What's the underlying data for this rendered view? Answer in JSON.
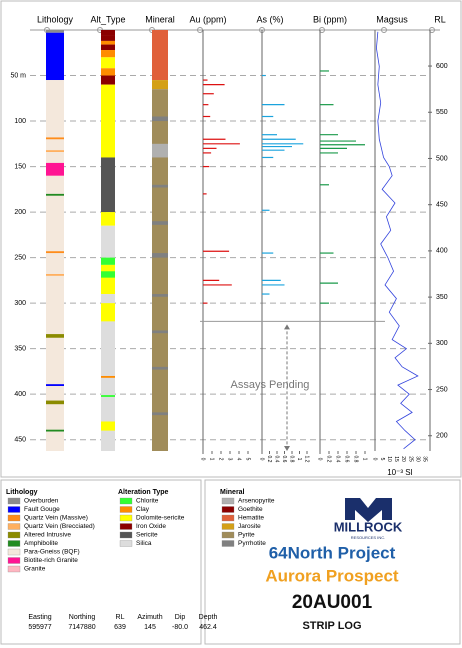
{
  "log": {
    "headers": {
      "lithology": "Lithology",
      "alteration": "Alt_Type",
      "mineral": "Mineral",
      "au": "Au (ppm)",
      "as": "As (%)",
      "bi": "Bi (ppm)",
      "magsus": "Magsus",
      "rl": "RL"
    },
    "depth_lim": [
      0,
      462.4
    ],
    "depth_ticks": [
      {
        "value": 50,
        "label": "50 m"
      },
      100,
      150,
      200,
      250,
      300,
      350,
      400,
      450
    ],
    "rl_lim": [
      639,
      183.5
    ],
    "rl_ticks": [
      600,
      550,
      500,
      450,
      400,
      350,
      300,
      250,
      200
    ],
    "lithology": [
      {
        "from": 0,
        "to": 3,
        "code": 0
      },
      {
        "from": 3,
        "to": 55,
        "code": 1
      },
      {
        "from": 55,
        "to": 462.4,
        "code": 6
      },
      {
        "from": 118,
        "to": 120,
        "code": 2
      },
      {
        "from": 132,
        "to": 134,
        "code": 3
      },
      {
        "from": 146,
        "to": 160,
        "code": 7
      },
      {
        "from": 180,
        "to": 182,
        "code": 5
      },
      {
        "from": 243,
        "to": 245,
        "code": 2
      },
      {
        "from": 268,
        "to": 270,
        "code": 3
      },
      {
        "from": 334,
        "to": 338,
        "code": 4
      },
      {
        "from": 389,
        "to": 391,
        "code": 1
      },
      {
        "from": 407,
        "to": 411,
        "code": 4
      },
      {
        "from": 439,
        "to": 441,
        "code": 5
      }
    ],
    "alteration": [
      {
        "from": 0,
        "to": 6,
        "code": 3
      },
      {
        "from": 6,
        "to": 12,
        "code": 3
      },
      {
        "from": 12,
        "to": 16,
        "code": 1
      },
      {
        "from": 16,
        "to": 22,
        "code": 3
      },
      {
        "from": 22,
        "to": 30,
        "code": 1
      },
      {
        "from": 30,
        "to": 42,
        "code": 2
      },
      {
        "from": 42,
        "to": 50,
        "code": 1
      },
      {
        "from": 50,
        "to": 60,
        "code": 3
      },
      {
        "from": 60,
        "to": 140,
        "code": 2
      },
      {
        "from": 140,
        "to": 200,
        "code": 4
      },
      {
        "from": 200,
        "to": 215,
        "code": 2
      },
      {
        "from": 215,
        "to": 250,
        "code": 5
      },
      {
        "from": 250,
        "to": 258,
        "code": 0
      },
      {
        "from": 258,
        "to": 290,
        "code": 2
      },
      {
        "from": 265,
        "to": 272,
        "code": 0
      },
      {
        "from": 290,
        "to": 462.4,
        "code": 5
      },
      {
        "from": 300,
        "to": 320,
        "code": 2
      },
      {
        "from": 380,
        "to": 382,
        "code": 1
      },
      {
        "from": 401,
        "to": 403,
        "code": 0
      },
      {
        "from": 430,
        "to": 440,
        "code": 2
      }
    ],
    "mineral": [
      {
        "from": 0,
        "to": 55,
        "code": 2
      },
      {
        "from": 55,
        "to": 65,
        "code": 3
      },
      {
        "from": 65,
        "to": 462.4,
        "code": 4
      },
      {
        "from": 95,
        "to": 100,
        "code": 5
      },
      {
        "from": 125,
        "to": 140,
        "code": 0
      },
      {
        "from": 170,
        "to": 173,
        "code": 5
      },
      {
        "from": 210,
        "to": 214,
        "code": 5
      },
      {
        "from": 245,
        "to": 250,
        "code": 5
      },
      {
        "from": 290,
        "to": 293,
        "code": 5
      },
      {
        "from": 330,
        "to": 333,
        "code": 5
      },
      {
        "from": 370,
        "to": 373,
        "code": 5
      },
      {
        "from": 420,
        "to": 423,
        "code": 5
      }
    ],
    "au": {
      "xlim": [
        0,
        5
      ],
      "xticks": [
        0,
        1,
        2,
        3,
        4,
        5
      ],
      "depths": [
        55,
        60,
        70,
        82,
        95,
        120,
        125,
        130,
        135,
        150,
        180,
        243,
        275,
        280,
        300
      ],
      "values": [
        0.5,
        2.4,
        1.2,
        0.6,
        0.8,
        2.5,
        4.1,
        1.5,
        0.9,
        0.7,
        0.4,
        2.9,
        1.8,
        3.2,
        0.5
      ]
    },
    "as": {
      "xlim": [
        0,
        1.2
      ],
      "xticks": [
        0,
        0.2,
        0.4,
        0.6,
        0.8,
        1,
        1.2
      ],
      "depths": [
        50,
        82,
        95,
        115,
        120,
        125,
        128,
        132,
        140,
        198,
        245,
        275,
        280,
        290
      ],
      "values": [
        0.1,
        0.6,
        0.3,
        0.4,
        0.9,
        1.1,
        0.8,
        0.6,
        0.3,
        0.2,
        0.3,
        0.5,
        0.6,
        0.2
      ]
    },
    "bi": {
      "xlim": [
        0,
        1
      ],
      "xticks": [
        0,
        0.2,
        0.4,
        0.6,
        0.8,
        1
      ],
      "depths": [
        45,
        82,
        115,
        122,
        126,
        130,
        135,
        170,
        245,
        278,
        300
      ],
      "values": [
        0.2,
        0.3,
        0.4,
        0.8,
        1,
        0.6,
        0.4,
        0.2,
        0.3,
        0.4,
        0.2
      ]
    },
    "magsus": {
      "xlim": [
        0,
        35
      ],
      "xticks": [
        0,
        5,
        10,
        15,
        20,
        25,
        30,
        35
      ],
      "unit": "10⁻³ SI",
      "depths": [
        2,
        20,
        40,
        60,
        80,
        100,
        120,
        140,
        150,
        160,
        175,
        190,
        205,
        220,
        235,
        250,
        265,
        280,
        295,
        310,
        325,
        340,
        350,
        360,
        370,
        380,
        390,
        400,
        410,
        420,
        430,
        440,
        450,
        460
      ],
      "values": [
        2,
        1,
        3,
        2,
        4,
        2,
        3,
        6,
        10,
        12,
        5,
        14,
        8,
        11,
        4,
        9,
        13,
        7,
        15,
        10,
        17,
        12,
        22,
        14,
        19,
        30,
        16,
        24,
        18,
        26,
        15,
        21,
        28,
        20
      ]
    },
    "pending": "Assays Pending",
    "pending_depth": 320
  },
  "legend": {
    "lithology": {
      "title": "Lithology",
      "items": [
        {
          "name": "Overburden",
          "color": "#8c8c8c"
        },
        {
          "name": "Fault Gouge",
          "color": "#0000ff"
        },
        {
          "name": "Quartz Vein (Massive)",
          "color": "#ff8c1a"
        },
        {
          "name": "Quartz Vein (Brecciated)",
          "color": "#ffb060"
        },
        {
          "name": "Altered Intrusive",
          "color": "#8b8b00"
        },
        {
          "name": "Amphibolite",
          "color": "#228b22"
        },
        {
          "name": "Para-Gneiss (BQF)",
          "color": "#f4e8dc"
        },
        {
          "name": "Biotite-rich Granite",
          "color": "#ff1493"
        },
        {
          "name": "Granite",
          "color": "#ffb6c1"
        }
      ]
    },
    "alteration": {
      "title": "Alteration Type",
      "items": [
        {
          "name": "Chlorite",
          "color": "#33ff33"
        },
        {
          "name": "Clay",
          "color": "#ff8c00"
        },
        {
          "name": "Dolomite-sericite",
          "color": "#ffff00"
        },
        {
          "name": "Iron Oxide",
          "color": "#8b0000"
        },
        {
          "name": "Sericite",
          "color": "#555555"
        },
        {
          "name": "Silica",
          "color": "#dddddd"
        }
      ]
    },
    "mineral": {
      "title": "Mineral",
      "items": [
        {
          "name": "Arsenopyrite",
          "color": "#b0b0b0"
        },
        {
          "name": "Goethite",
          "color": "#8b0000"
        },
        {
          "name": "Hematite",
          "color": "#e0603a"
        },
        {
          "name": "Jarosite",
          "color": "#d4a017"
        },
        {
          "name": "Pyrite",
          "color": "#a08c5a"
        },
        {
          "name": "Pyrrhotite",
          "color": "#808080"
        }
      ]
    }
  },
  "collar": [
    {
      "label": "Easting",
      "value": "595977"
    },
    {
      "label": "Northing",
      "value": "7147880"
    },
    {
      "label": "RL",
      "value": "639"
    },
    {
      "label": "Azimuth",
      "value": "145"
    },
    {
      "label": "Dip",
      "value": "-80.0"
    },
    {
      "label": "Depth",
      "value": "462.4"
    }
  ],
  "title_block": {
    "logo": "MILLROCK",
    "logo_sub": "RESOURCES INC.",
    "project": "64North Project",
    "prospect": "Aurora Prospect",
    "hole": "20AU001",
    "doc": "STRIP LOG"
  }
}
